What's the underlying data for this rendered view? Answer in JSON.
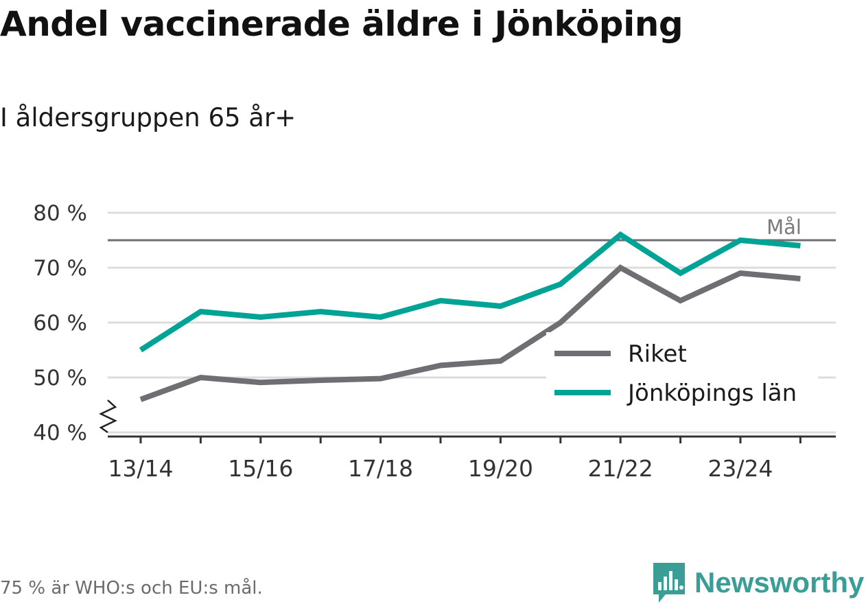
{
  "title": "Andel vaccinerade äldre i Jönköping",
  "subtitle": "I åldersgruppen 65 år+",
  "footnote": "75 % är WHO:s och EU:s mål.",
  "brand": {
    "name": "Newsworthy",
    "icon": "newsworthy-logo-icon",
    "color": "#3a9e96"
  },
  "chart_data": {
    "type": "line",
    "x": [
      "13/14",
      "14/15",
      "15/16",
      "16/17",
      "17/18",
      "18/19",
      "19/20",
      "20/21",
      "21/22",
      "22/23",
      "23/24",
      "24/25"
    ],
    "xtick_labels": [
      "13/14",
      "15/16",
      "17/18",
      "19/20",
      "21/22",
      "23/24"
    ],
    "ylim": [
      40,
      80
    ],
    "yticks": [
      40,
      50,
      60,
      70,
      80
    ],
    "ytick_labels": [
      "40 %",
      "50 %",
      "60 %",
      "70 %",
      "80 %"
    ],
    "reference_line": {
      "value": 75,
      "label": "Mål",
      "color": "#6e6e73"
    },
    "series": [
      {
        "name": "Riket",
        "color": "#6e6e73",
        "values": [
          46,
          50,
          49.1,
          49.5,
          49.8,
          52.2,
          53,
          60,
          70,
          64,
          69,
          68
        ]
      },
      {
        "name": "Jönköpings län",
        "color": "#00a396",
        "values": [
          55,
          62,
          61,
          62,
          61,
          64,
          63,
          67,
          76,
          69,
          75,
          74
        ]
      }
    ],
    "legend": "bottom-right",
    "grid": true,
    "axis_break": true
  }
}
